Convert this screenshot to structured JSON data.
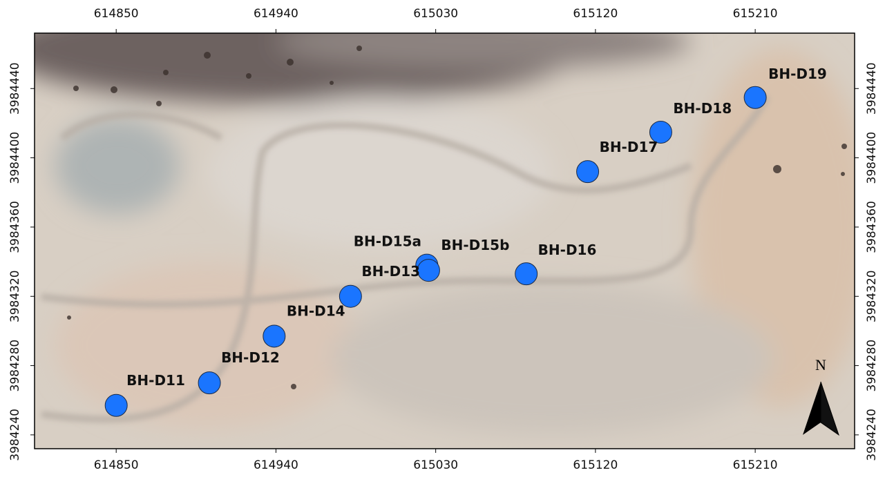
{
  "chart_data": {
    "type": "scatter",
    "xlim": [
      614804,
      615266
    ],
    "ylim": [
      3984232,
      3984472
    ],
    "xticks": [
      614850,
      614940,
      615030,
      615120,
      615210
    ],
    "yticks": [
      3984240,
      3984280,
      3984320,
      3984360,
      3984400,
      3984440
    ],
    "labels": [
      "BH-D11",
      "BH-D12",
      "BH-D14",
      "BH-D13",
      "BH-D15a",
      "BH-D15b",
      "BH-D16",
      "BH-D17",
      "BH-D18",
      "BH-D19"
    ],
    "x": [
      614850,
      614902.5,
      614939,
      614982,
      615025,
      615026,
      615081,
      615115.6,
      615156.8,
      615210
    ],
    "y": [
      3984257,
      3984270,
      3984297,
      3984320,
      3984338,
      3984335,
      3984333,
      3984392,
      3984414.8,
      3984434.8
    ],
    "color": "#1a75ff",
    "north_label": "N"
  }
}
